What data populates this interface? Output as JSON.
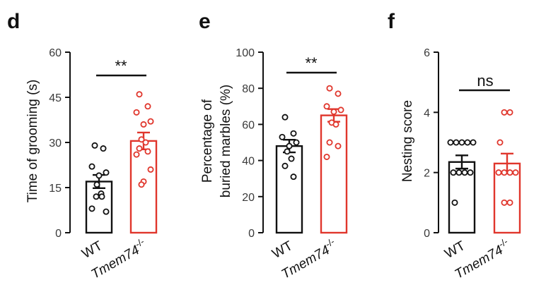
{
  "chart_data": [
    {
      "panel": "d",
      "type": "bar",
      "ylabel": "Time of grooming (s)",
      "ylim": [
        0,
        60
      ],
      "yticks": [
        "0",
        "15",
        "30",
        "45",
        "60"
      ],
      "categories": [
        "WT",
        "Tmem74"
      ],
      "category_superscript": [
        "",
        "-/-"
      ],
      "colors": [
        "#111111",
        "#e0362c"
      ],
      "means": [
        17,
        30.5
      ],
      "sem": [
        2.2,
        2.8
      ],
      "points": [
        [
          29,
          28,
          22,
          20,
          19,
          16,
          13,
          12,
          12,
          8,
          7
        ],
        [
          46,
          42,
          40,
          37,
          36,
          31,
          30,
          28,
          27,
          26,
          21,
          17,
          16
        ]
      ],
      "significance": "**"
    },
    {
      "panel": "e",
      "type": "bar",
      "ylabel": [
        "Percentage of",
        "buried marbles (%)"
      ],
      "ylim": [
        0,
        100
      ],
      "yticks": [
        "0",
        "20",
        "40",
        "60",
        "80",
        "100"
      ],
      "categories": [
        "WT",
        "Tmem74"
      ],
      "category_superscript": [
        "",
        "-/-"
      ],
      "colors": [
        "#111111",
        "#e0362c"
      ],
      "means": [
        48,
        65
      ],
      "sem": [
        3.5,
        3.5
      ],
      "points": [
        [
          64,
          55,
          53,
          50,
          48,
          45,
          41,
          37,
          31
        ],
        [
          80,
          77,
          70,
          68,
          67,
          61,
          60,
          50,
          48,
          42
        ]
      ],
      "significance": "**"
    },
    {
      "panel": "f",
      "type": "bar",
      "ylabel": "Nesting score",
      "ylim": [
        0,
        6
      ],
      "yticks": [
        "0",
        "2",
        "4",
        "6"
      ],
      "categories": [
        "WT",
        "Tmem74"
      ],
      "category_superscript": [
        "",
        "-/-"
      ],
      "colors": [
        "#111111",
        "#e0362c"
      ],
      "means": [
        2.35,
        2.3
      ],
      "sem": [
        0.22,
        0.33
      ],
      "points": [
        [
          3,
          3,
          3,
          3,
          3,
          2,
          2,
          2,
          2,
          1
        ],
        [
          4,
          4,
          3,
          2,
          2,
          2,
          2,
          1,
          1
        ]
      ],
      "significance": "ns"
    }
  ]
}
